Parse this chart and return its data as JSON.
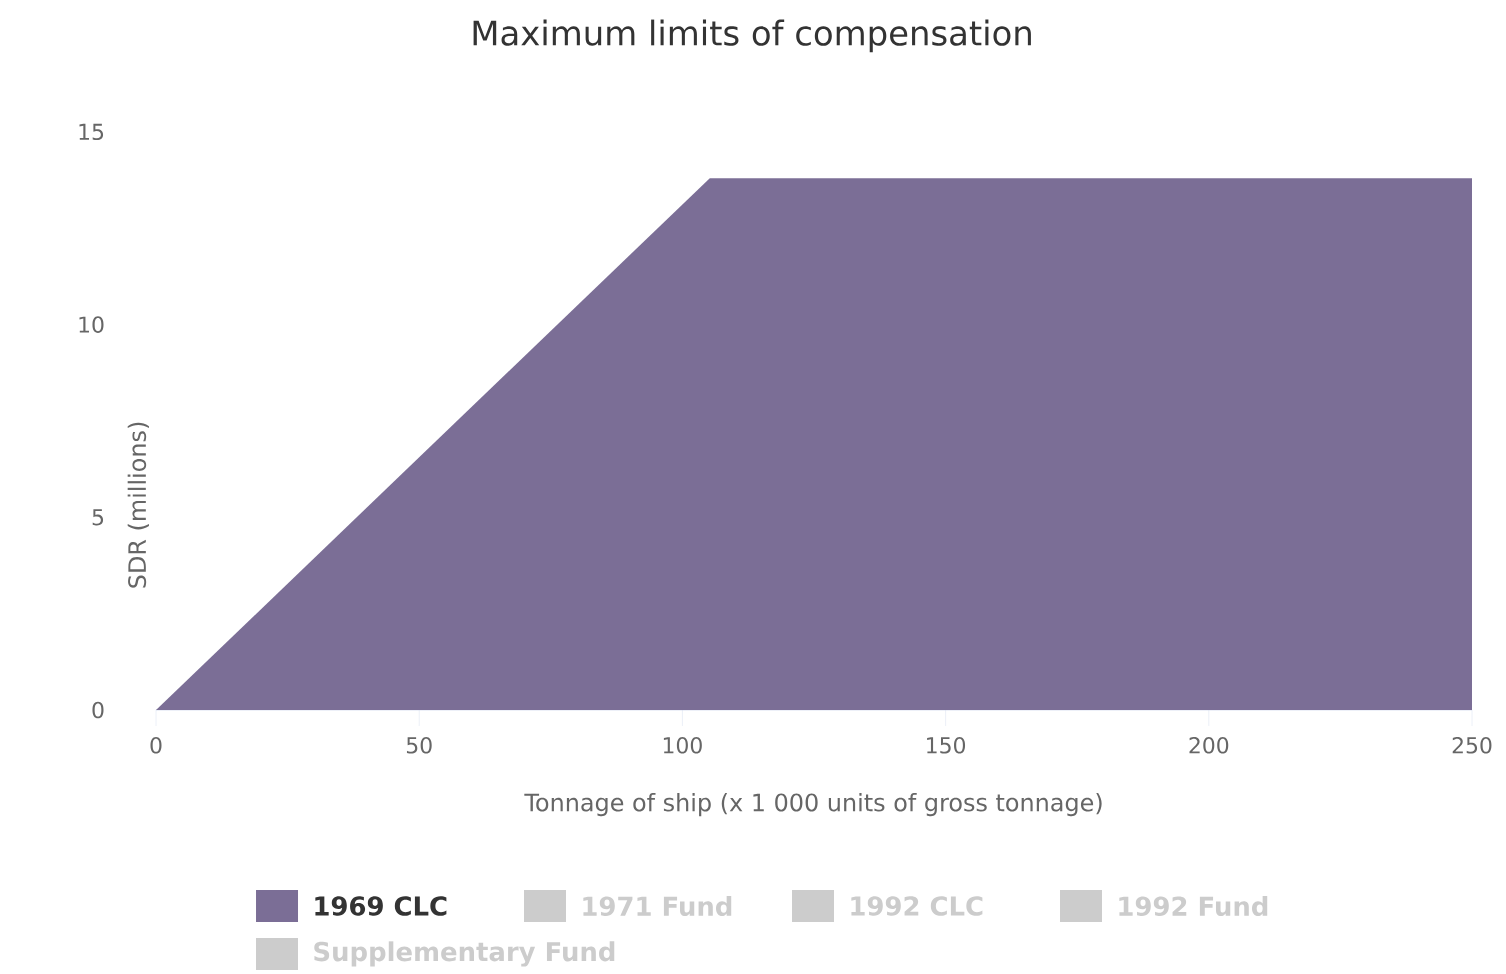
{
  "chart_data": {
    "type": "area",
    "title": "Maximum limits of compensation",
    "xlabel": "Tonnage of ship (x 1 000 units of gross tonnage)",
    "ylabel": "SDR (millions)",
    "x": [
      0,
      105.2,
      250
    ],
    "series": [
      {
        "name": "1969 CLC",
        "color": "#7b6e96",
        "values": [
          0,
          13.8,
          13.8
        ]
      },
      {
        "name": "1971 Fund",
        "color": "#cccccc",
        "values": [
          null,
          null,
          null
        ]
      },
      {
        "name": "1992 CLC",
        "color": "#cccccc",
        "values": [
          null,
          null,
          null
        ]
      },
      {
        "name": "1992 Fund",
        "color": "#cccccc",
        "values": [
          null,
          null,
          null
        ]
      },
      {
        "name": "Supplementary Fund",
        "color": "#cccccc",
        "values": [
          null,
          null,
          null
        ]
      }
    ],
    "xlim": [
      0,
      250
    ],
    "xticks": [
      0,
      50,
      100,
      150,
      200,
      250
    ],
    "ylim": [
      0,
      15
    ],
    "yticks": [
      0,
      5,
      10,
      15
    ],
    "grid": false,
    "legend": "bottom"
  }
}
